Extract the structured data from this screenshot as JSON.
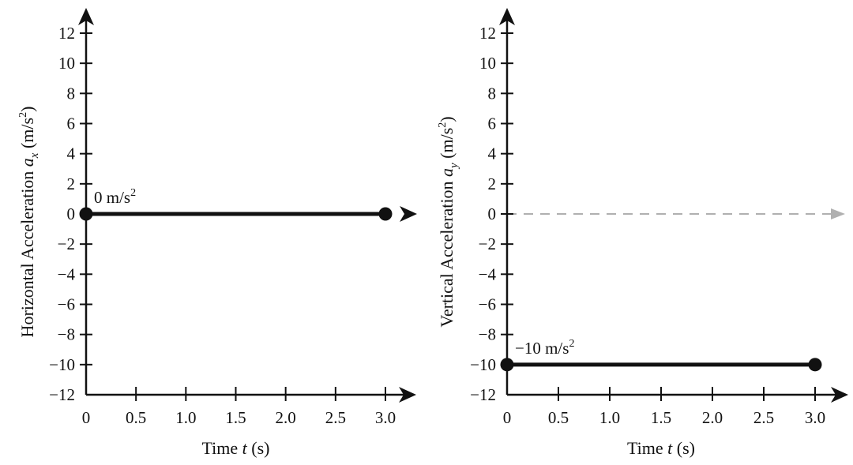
{
  "chart_data": [
    {
      "type": "line",
      "title": "",
      "xlabel": {
        "pre": "Time ",
        "var": "t",
        "post": " (s)"
      },
      "ylabel": {
        "pre": "Horizontal Acceleration ",
        "var": "a",
        "sub": "x",
        "post_a": " (m/s",
        "sup": "2",
        "post_b": ")"
      },
      "x_ticks": [
        "0",
        "0.5",
        "1.0",
        "1.5",
        "2.0",
        "2.5",
        "3.0"
      ],
      "y_ticks": [
        "12",
        "10",
        "8",
        "6",
        "4",
        "2",
        "0",
        "−2",
        "−4",
        "−6",
        "−8",
        "−10",
        "−12"
      ],
      "xlim": [
        0,
        3.0
      ],
      "ylim": [
        -12,
        12
      ],
      "series": [
        {
          "x": [
            0,
            3.0
          ],
          "y": [
            0,
            0
          ],
          "endpoints": "filled-dots"
        }
      ],
      "annotation": {
        "text": "0 m/s",
        "sup": "2",
        "x": 0,
        "y": 0
      },
      "reference_line": null,
      "grid": false
    },
    {
      "type": "line",
      "title": "",
      "xlabel": {
        "pre": "Time ",
        "var": "t",
        "post": " (s)"
      },
      "ylabel": {
        "pre": "Vertical Acceleration ",
        "var": "a",
        "sub": "y",
        "post_a": " (m/s",
        "sup": "2",
        "post_b": ")"
      },
      "x_ticks": [
        "0",
        "0.5",
        "1.0",
        "1.5",
        "2.0",
        "2.5",
        "3.0"
      ],
      "y_ticks": [
        "12",
        "10",
        "8",
        "6",
        "4",
        "2",
        "0",
        "−2",
        "−4",
        "−6",
        "−8",
        "−10",
        "−12"
      ],
      "xlim": [
        0,
        3.0
      ],
      "ylim": [
        -12,
        12
      ],
      "series": [
        {
          "x": [
            0,
            3.0
          ],
          "y": [
            -10,
            -10
          ],
          "endpoints": "filled-dots"
        }
      ],
      "annotation": {
        "text": "−10 m/s",
        "sup": "2",
        "x": 0,
        "y": -10
      },
      "reference_line": {
        "y": 0,
        "style": "dashed",
        "color": "#b0b0b0"
      },
      "grid": false
    }
  ]
}
